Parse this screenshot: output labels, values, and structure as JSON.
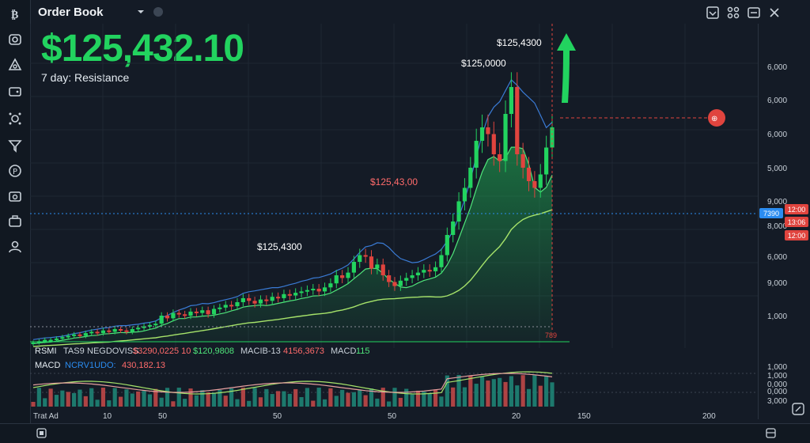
{
  "header": {
    "title": "Order Book",
    "price": "$125,432.10",
    "subtitle": "7 day: Resistance"
  },
  "annotations": [
    {
      "text": "$125,4300",
      "color": "#ffffff"
    },
    {
      "text": "$125,0000",
      "color": "#ffffff"
    },
    {
      "text": "$125,43,00",
      "color": "#ff6b6b"
    },
    {
      "text": "$125,4300",
      "color": "#ffffff"
    }
  ],
  "y_axis_labels": [
    "6,000",
    "6,000",
    "6,000",
    "5,000",
    "9,000",
    "8,000",
    "6,000",
    "9,000",
    "1,000"
  ],
  "price_tags": {
    "left": "7390",
    "right_top": "12:00",
    "right_mid": "13:06",
    "right_bot": "12:00"
  },
  "bottom_marker": "789",
  "indicators": {
    "rsmi": "RSMI",
    "rsmi_v1": "TAS9",
    "rsmi_v2": "NEGDOVISS",
    "rsmi_v3": "$3290,0225 10",
    "rsmi_v4": "$120,9808",
    "rsmi_v5": "MACIB-13",
    "rsmi_v6": "4156,3673",
    "rsmi_v7": "MACD",
    "rsmi_v8": "115",
    "macd": "MACD",
    "macd_v1": "NCRV1UDO:",
    "macd_v2": "430,182.13"
  },
  "sub_y_labels": [
    "1,000",
    "1,000",
    "0,000",
    "0,000",
    "3,000"
  ],
  "x_axis_labels": [
    "Trat Ad",
    "10",
    "50",
    "50",
    "50",
    "20",
    "150",
    "200"
  ],
  "colors": {
    "up": "#22d35f",
    "down": "#e0443e",
    "accent": "#2b8cf0"
  },
  "chart_data": {
    "type": "candlestick",
    "title": "Order Book",
    "x": [
      0,
      1,
      2,
      3,
      4,
      5,
      6,
      7,
      8,
      9,
      10,
      11,
      12,
      13,
      14,
      15,
      16,
      17,
      18,
      19,
      20,
      21,
      22,
      23,
      24,
      25,
      26,
      27,
      28,
      29,
      30,
      31,
      32,
      33,
      34,
      35,
      36,
      37,
      38,
      39,
      40,
      41,
      42,
      43,
      44,
      45,
      46,
      47,
      48,
      49,
      50,
      51,
      52,
      53,
      54,
      55,
      56,
      57,
      58,
      59,
      60,
      61,
      62,
      63,
      64,
      65,
      66,
      67,
      68,
      69,
      70,
      71,
      72,
      73,
      74,
      75,
      76,
      77,
      78,
      79,
      80,
      81,
      82,
      83,
      84,
      85,
      86,
      87,
      88,
      89
    ],
    "close": [
      10,
      11,
      12,
      12,
      13,
      14,
      15,
      16,
      15,
      17,
      18,
      17,
      19,
      18,
      20,
      19,
      18,
      20,
      21,
      22,
      23,
      24,
      30,
      28,
      32,
      31,
      30,
      33,
      32,
      34,
      31,
      35,
      36,
      38,
      37,
      40,
      43,
      41,
      39,
      42,
      41,
      44,
      43,
      46,
      45,
      47,
      48,
      49,
      50,
      48,
      51,
      54,
      60,
      58,
      62,
      70,
      75,
      74,
      65,
      68,
      60,
      55,
      52,
      56,
      58,
      60,
      62,
      64,
      63,
      66,
      75,
      90,
      100,
      115,
      125,
      140,
      160,
      170,
      165,
      150,
      145,
      180,
      200,
      150,
      140,
      130,
      125,
      135,
      155,
      170
    ],
    "ylim": [
      0,
      200
    ]
  }
}
